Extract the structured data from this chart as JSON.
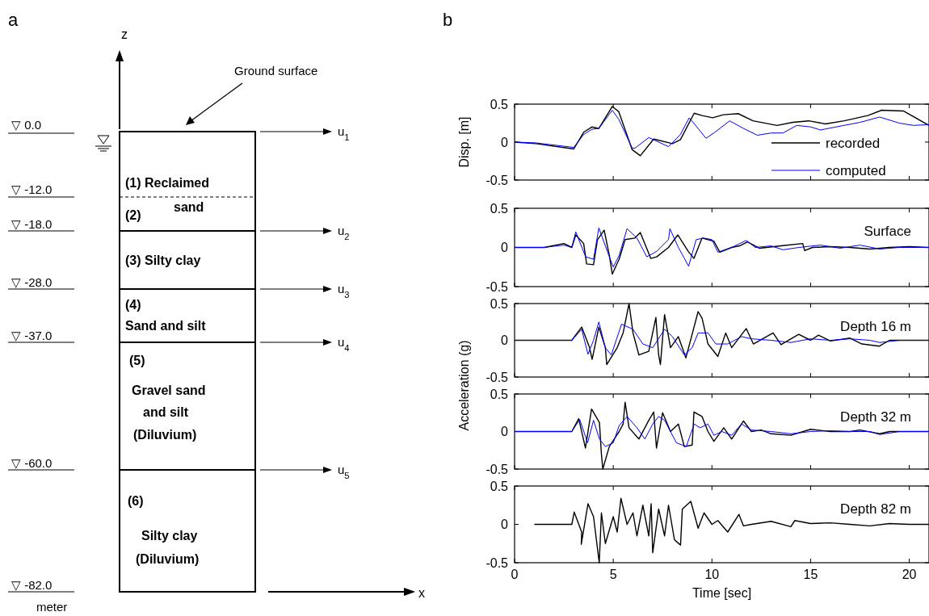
{
  "chart_data": [
    {
      "type": "other",
      "annotations": [
        "a",
        "z",
        "Ground surface",
        "▽  0.0",
        "▽  -12.0",
        "▽  -18.0",
        "▽  -28.0",
        "▽  -37.0",
        "▽  -60.0",
        "▽  -82.0",
        "meter",
        "u$_{1}$",
        "u$_{2}$",
        "u$_{3}$",
        "u$_{4}$",
        "u$_{5}$",
        "(1)  Reclaimed",
        "sand",
        "(2)",
        "(3) Silty clay",
        "(4)",
        "Sand and silt",
        "(5)",
        "Gravel sand",
        "and silt",
        "(Diluvium)",
        "(6)",
        "Silty clay",
        "(Diluvium)",
        "x"
      ]
    },
    {
      "type": "line",
      "ylabel": "Disp. [m]",
      "annotations": [
        "b"
      ],
      "xlim": [
        0,
        21
      ],
      "xticks": [
        0,
        5,
        10,
        15,
        20
      ],
      "ylim": [
        -0.5,
        0.5
      ],
      "yticks": [
        -0.5,
        0,
        0.5
      ],
      "tick_labels": "y",
      "legend": "bottom right",
      "series": [
        {
          "name": "recorded",
          "color": "#000000",
          "x": [
            0,
            1.07,
            3.0,
            3.5,
            3.93,
            4.27,
            4.95,
            5.28,
            5.96,
            6.37,
            7.05,
            8.0,
            8.4,
            9.1,
            9.5,
            10.04,
            10.58,
            11.33,
            12.08,
            13.3,
            14.1,
            14.9,
            15.75,
            16.7,
            17.9,
            18.6,
            19.7,
            21
          ],
          "values": [
            0,
            -0.02,
            -0.09,
            0.13,
            0.2,
            0.18,
            0.47,
            0.4,
            -0.1,
            -0.18,
            0.04,
            -0.02,
            0.03,
            0.38,
            0.35,
            0.32,
            0.36,
            0.375,
            0.28,
            0.22,
            0.26,
            0.28,
            0.24,
            0.28,
            0.35,
            0.42,
            0.41,
            0.22
          ]
        },
        {
          "name": "computed",
          "color": "#0000ff",
          "x": [
            0,
            1.07,
            3.0,
            3.5,
            3.93,
            4.27,
            4.95,
            5.28,
            5.96,
            6.1,
            6.8,
            7.8,
            8.4,
            8.85,
            9.3,
            9.7,
            10.1,
            10.9,
            11.6,
            12.3,
            13.0,
            13.6,
            14.3,
            15.0,
            15.5,
            16.5,
            17.5,
            18.5,
            19.5,
            20.2,
            21
          ],
          "values": [
            0,
            -0.01,
            -0.07,
            0.1,
            0.17,
            0.18,
            0.42,
            0.3,
            -0.08,
            -0.08,
            0.06,
            -0.06,
            0.1,
            0.32,
            0.18,
            0.05,
            0.12,
            0.28,
            0.18,
            0.09,
            0.12,
            0.12,
            0.22,
            0.2,
            0.16,
            0.21,
            0.26,
            0.33,
            0.25,
            0.22,
            0.23
          ]
        }
      ]
    },
    {
      "type": "line",
      "annotations": [
        "Surface"
      ],
      "xlim": [
        0,
        21
      ],
      "xticks": [
        0,
        5,
        10,
        15,
        20
      ],
      "ylim": [
        -0.5,
        0.5
      ],
      "yticks": [
        -0.5,
        0,
        0.5
      ],
      "tick_labels": "y",
      "series": [
        {
          "color": "#000000",
          "x": [
            0,
            1.5,
            2.5,
            2.9,
            3.1,
            3.5,
            3.65,
            4.0,
            4.2,
            4.54,
            4.8,
            4.95,
            5.3,
            5.6,
            6.1,
            6.37,
            6.9,
            7.2,
            7.8,
            8.27,
            8.8,
            9.09,
            9.5,
            10.1,
            10.4,
            11.0,
            11.4,
            11.8,
            12.4,
            13.5,
            14.6,
            14.7,
            15.1,
            16,
            17,
            18,
            19,
            20,
            21
          ],
          "values": [
            0,
            0,
            0.05,
            0,
            0.16,
            0.05,
            -0.21,
            -0.22,
            0.1,
            0.22,
            -0.1,
            -0.34,
            -0.15,
            0.1,
            0.12,
            0.19,
            -0.14,
            -0.12,
            0,
            0.16,
            -0.05,
            -0.14,
            0.12,
            0.08,
            -0.06,
            0,
            0.02,
            0.07,
            -0.01,
            0.02,
            0.05,
            -0.04,
            0,
            0.01,
            0,
            -0.02,
            0,
            0.01,
            0
          ]
        },
        {
          "color": "#0000ff",
          "x": [
            0,
            1.5,
            2.5,
            2.9,
            3.1,
            3.6,
            4.0,
            4.27,
            4.7,
            5.0,
            5.3,
            5.7,
            6.2,
            6.7,
            7.2,
            7.8,
            7.87,
            8.3,
            8.82,
            9.2,
            9.6,
            10.0,
            10.3,
            11,
            11.74,
            12.2,
            13,
            13.6,
            14.4,
            15.5,
            16.5,
            17.5,
            18.5,
            19.5,
            21
          ],
          "values": [
            0,
            0,
            0.03,
            0,
            0.2,
            -0.12,
            -0.15,
            0.25,
            -0.05,
            -0.25,
            -0.1,
            0.24,
            0.12,
            -0.12,
            -0.05,
            0.1,
            0.24,
            0,
            -0.24,
            0.1,
            0.12,
            0.1,
            -0.06,
            0,
            0.09,
            0,
            0.02,
            -0.03,
            0,
            0.03,
            -0.01,
            0.03,
            -0.02,
            0,
            0
          ]
        }
      ]
    },
    {
      "type": "line",
      "ylabel": "Acceleration (g)",
      "annotations": [
        "Depth 16 m"
      ],
      "xlim": [
        0,
        21
      ],
      "xticks": [
        0,
        5,
        10,
        15,
        20
      ],
      "ylim": [
        -0.5,
        0.5
      ],
      "yticks": [
        -0.5,
        0,
        0.5
      ],
      "tick_labels": "y",
      "series": [
        {
          "color": "#000000",
          "x": [
            0,
            2,
            2.9,
            3.4,
            3.8,
            3.93,
            4.27,
            4.6,
            4.67,
            5.2,
            5.5,
            5.8,
            6.0,
            6.3,
            6.8,
            7.16,
            7.3,
            7.39,
            7.6,
            7.9,
            8.3,
            8.68,
            9.3,
            9.5,
            9.8,
            10.3,
            10.7,
            11,
            11.74,
            12.1,
            13.1,
            13.5,
            14.4,
            15,
            15.4,
            16,
            17,
            17.6,
            18.47,
            19,
            20,
            21
          ],
          "values": [
            0,
            0,
            0,
            0.18,
            -0.1,
            -0.26,
            0.18,
            -0.1,
            -0.33,
            -0.1,
            0.1,
            0.5,
            0.1,
            -0.2,
            -0.15,
            0.31,
            -0.2,
            -0.33,
            0.35,
            -0.1,
            0.05,
            -0.24,
            0.39,
            0.3,
            -0.05,
            -0.22,
            0.1,
            -0.1,
            0.16,
            -0.05,
            0.1,
            -0.06,
            0.08,
            0,
            0.07,
            -0.01,
            0.03,
            -0.05,
            -0.08,
            0,
            0,
            0
          ]
        },
        {
          "color": "#0000ff",
          "x": [
            0,
            2.9,
            3.4,
            3.72,
            4.0,
            4.27,
            4.6,
            4.9,
            5.42,
            6.0,
            6.5,
            7.0,
            7.6,
            8.0,
            8.6,
            9.0,
            9.3,
            9.8,
            10.2,
            10.8,
            11.5,
            12,
            13,
            14,
            15,
            16,
            17,
            18,
            18.5,
            19.5,
            21
          ],
          "values": [
            0,
            0,
            0.15,
            -0.19,
            0,
            0.25,
            -0.1,
            -0.2,
            0.22,
            0.15,
            -0.05,
            -0.1,
            0.15,
            0.05,
            -0.2,
            -0.1,
            0.1,
            0.1,
            -0.05,
            -0.05,
            0.05,
            0.02,
            0,
            -0.03,
            0.02,
            0,
            0.02,
            0,
            -0.03,
            0,
            0
          ]
        }
      ]
    },
    {
      "type": "line",
      "annotations": [
        "Depth 32 m"
      ],
      "xlim": [
        0,
        21
      ],
      "xticks": [
        0,
        5,
        10,
        15,
        20
      ],
      "ylim": [
        -0.5,
        0.5
      ],
      "yticks": [
        -0.5,
        0,
        0.5
      ],
      "tick_labels": "y",
      "series": [
        {
          "color": "#000000",
          "x": [
            0,
            2.9,
            3.25,
            3.59,
            3.9,
            4.3,
            4.4,
            4.47,
            4.8,
            5.3,
            5.5,
            5.6,
            5.8,
            6.3,
            6.8,
            7.05,
            7.19,
            7.5,
            7.9,
            8.3,
            8.6,
            9.0,
            9.09,
            9.5,
            9.8,
            10.1,
            10.6,
            11.0,
            11.6,
            12,
            12.5,
            13,
            14,
            15,
            16,
            17,
            17.5,
            18.5,
            19,
            21
          ],
          "values": [
            0,
            0,
            0.17,
            -0.22,
            0.3,
            0.12,
            -0.3,
            -0.5,
            -0.2,
            0,
            0.1,
            0.39,
            0.05,
            -0.1,
            0.15,
            0.26,
            -0.22,
            0.25,
            0,
            0.1,
            -0.2,
            -0.18,
            0.26,
            0.2,
            0,
            -0.13,
            0.05,
            -0.1,
            0.14,
            0,
            0.02,
            -0.03,
            -0.05,
            0.03,
            0,
            0,
            0.02,
            -0.03,
            0,
            0
          ]
        },
        {
          "color": "#0000ff",
          "x": [
            0,
            2.9,
            3.3,
            3.7,
            4.0,
            4.3,
            4.6,
            5.0,
            5.3,
            5.7,
            6.2,
            6.6,
            7.0,
            7.3,
            7.6,
            8.2,
            8.7,
            9.1,
            9.4,
            9.8,
            10.1,
            10.5,
            11,
            11.5,
            12,
            13,
            14,
            15,
            16,
            17,
            18,
            18.5,
            19.5,
            21
          ],
          "values": [
            0,
            0,
            0.16,
            -0.15,
            0.15,
            -0.1,
            -0.2,
            -0.15,
            0.08,
            0.2,
            0.05,
            -0.1,
            0.1,
            0.2,
            0.15,
            -0.15,
            -0.2,
            0.1,
            0.05,
            0.1,
            -0.05,
            0,
            -0.05,
            0.1,
            0.02,
            0,
            -0.03,
            0,
            0.01,
            0,
            0,
            -0.04,
            0,
            0
          ]
        }
      ]
    },
    {
      "type": "line",
      "xlabel": "Time [sec]",
      "annotations": [
        "Depth 82 m"
      ],
      "xlim": [
        0,
        21
      ],
      "xticks": [
        0,
        5,
        10,
        15,
        20
      ],
      "ylim": [
        -0.5,
        0.5
      ],
      "yticks": [
        -0.5,
        0,
        0.5
      ],
      "series": [
        {
          "color": "#000000",
          "x": [
            1,
            2,
            2.9,
            3.02,
            3.4,
            3.38,
            3.72,
            4.0,
            4.29,
            4.4,
            4.6,
            5.0,
            5.2,
            5.39,
            5.7,
            6.0,
            6.2,
            6.5,
            6.8,
            6.92,
            7.0,
            7.3,
            7.6,
            7.8,
            8.1,
            8.41,
            8.5,
            8.93,
            9.3,
            9.6,
            10,
            10.3,
            10.8,
            11.37,
            11.6,
            12,
            13,
            14,
            14.2,
            15,
            16,
            17,
            18,
            19,
            20,
            21
          ],
          "values": [
            0,
            0,
            0,
            0.16,
            -0.1,
            -0.26,
            0.27,
            0.1,
            -0.5,
            0.15,
            -0.25,
            0.1,
            -0.1,
            0.34,
            0,
            0.15,
            -0.15,
            0.25,
            -0.15,
            0.27,
            -0.37,
            0.2,
            -0.15,
            0.25,
            -0.2,
            -0.27,
            0.2,
            0.3,
            -0.05,
            0.15,
            0,
            0.05,
            -0.1,
            0.13,
            -0.02,
            0,
            0.04,
            -0.03,
            0.05,
            0.01,
            0.02,
            0,
            -0.02,
            0.01,
            0,
            0
          ]
        }
      ]
    }
  ]
}
